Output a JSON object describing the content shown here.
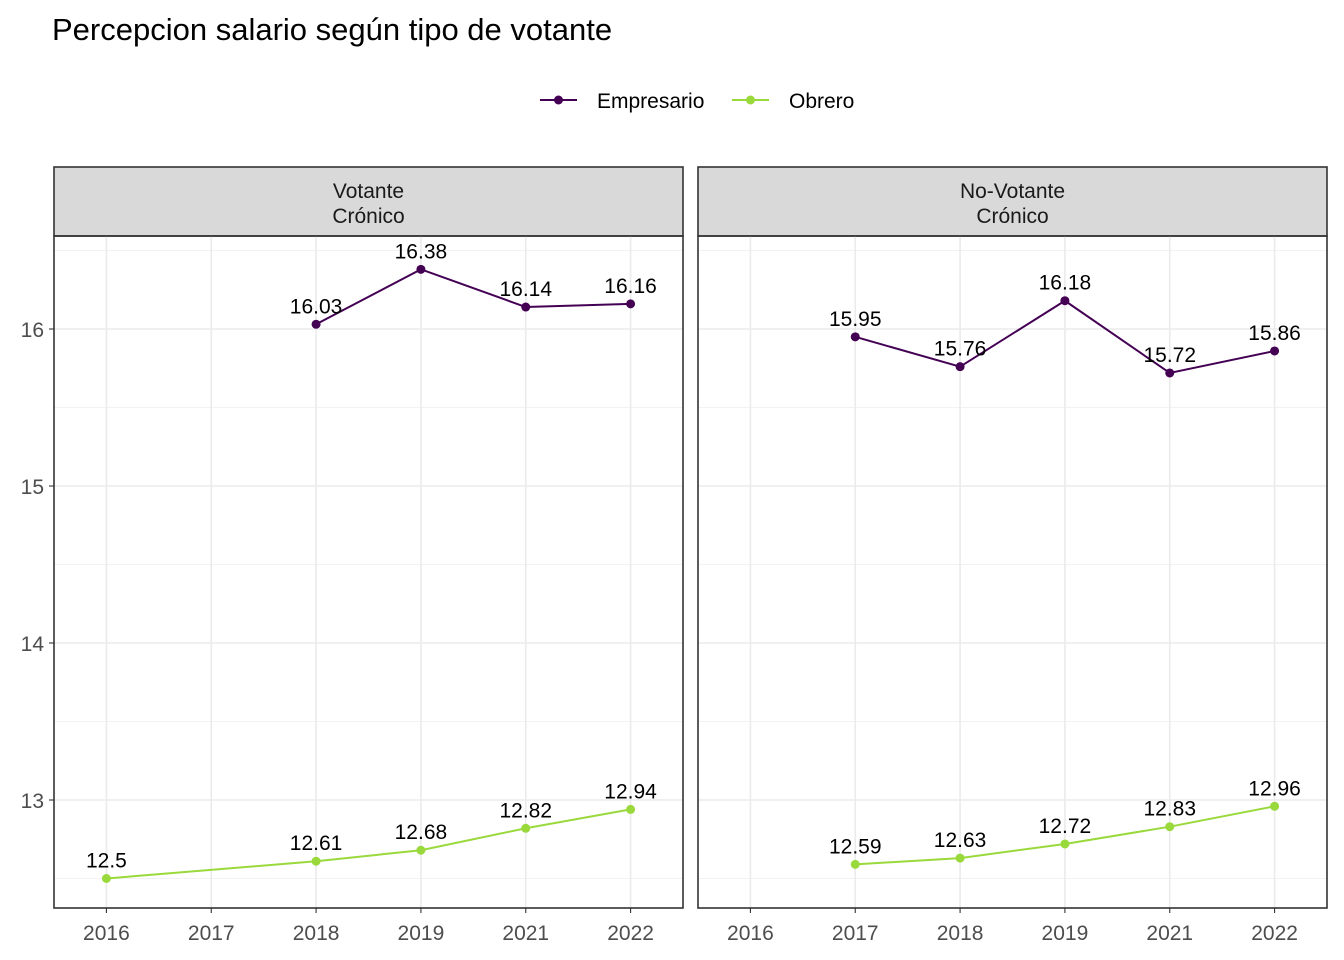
{
  "chart_data": {
    "type": "line",
    "title": "Percepcion salario según tipo de votante",
    "legend": {
      "position": "top",
      "entries": [
        "Empresario",
        "Obrero"
      ]
    },
    "colors": {
      "Empresario": "#440154",
      "Obrero": "#9ad93c",
      "strip_bg": "#d9d9d9",
      "panel_border": "#333333"
    },
    "x_categories": [
      "2016",
      "2017",
      "2018",
      "2019",
      "2021",
      "2022"
    ],
    "y_ticks": [
      13,
      14,
      15,
      16
    ],
    "ylim": [
      12.5,
      16.5
    ],
    "grid": true,
    "panels": [
      {
        "strip": [
          "Votante",
          "Crónico"
        ],
        "series": [
          {
            "name": "Empresario",
            "points": [
              {
                "x": "2018",
                "y": 16.03,
                "label": "16.03"
              },
              {
                "x": "2019",
                "y": 16.38,
                "label": "16.38"
              },
              {
                "x": "2021",
                "y": 16.14,
                "label": "16.14"
              },
              {
                "x": "2022",
                "y": 16.16,
                "label": "16.16"
              }
            ]
          },
          {
            "name": "Obrero",
            "points": [
              {
                "x": "2016",
                "y": 12.5,
                "label": "12.5"
              },
              {
                "x": "2018",
                "y": 12.61,
                "label": "12.61"
              },
              {
                "x": "2019",
                "y": 12.68,
                "label": "12.68"
              },
              {
                "x": "2021",
                "y": 12.82,
                "label": "12.82"
              },
              {
                "x": "2022",
                "y": 12.94,
                "label": "12.94"
              }
            ]
          }
        ]
      },
      {
        "strip": [
          "No-Votante",
          "Crónico"
        ],
        "series": [
          {
            "name": "Empresario",
            "points": [
              {
                "x": "2017",
                "y": 15.95,
                "label": "15.95"
              },
              {
                "x": "2018",
                "y": 15.76,
                "label": "15.76"
              },
              {
                "x": "2019",
                "y": 16.18,
                "label": "16.18"
              },
              {
                "x": "2021",
                "y": 15.72,
                "label": "15.72"
              },
              {
                "x": "2022",
                "y": 15.86,
                "label": "15.86"
              }
            ]
          },
          {
            "name": "Obrero",
            "points": [
              {
                "x": "2017",
                "y": 12.59,
                "label": "12.59"
              },
              {
                "x": "2018",
                "y": 12.63,
                "label": "12.63"
              },
              {
                "x": "2019",
                "y": 12.72,
                "label": "12.72"
              },
              {
                "x": "2021",
                "y": 12.83,
                "label": "12.83"
              },
              {
                "x": "2022",
                "y": 12.96,
                "label": "12.96"
              }
            ]
          }
        ]
      }
    ]
  }
}
